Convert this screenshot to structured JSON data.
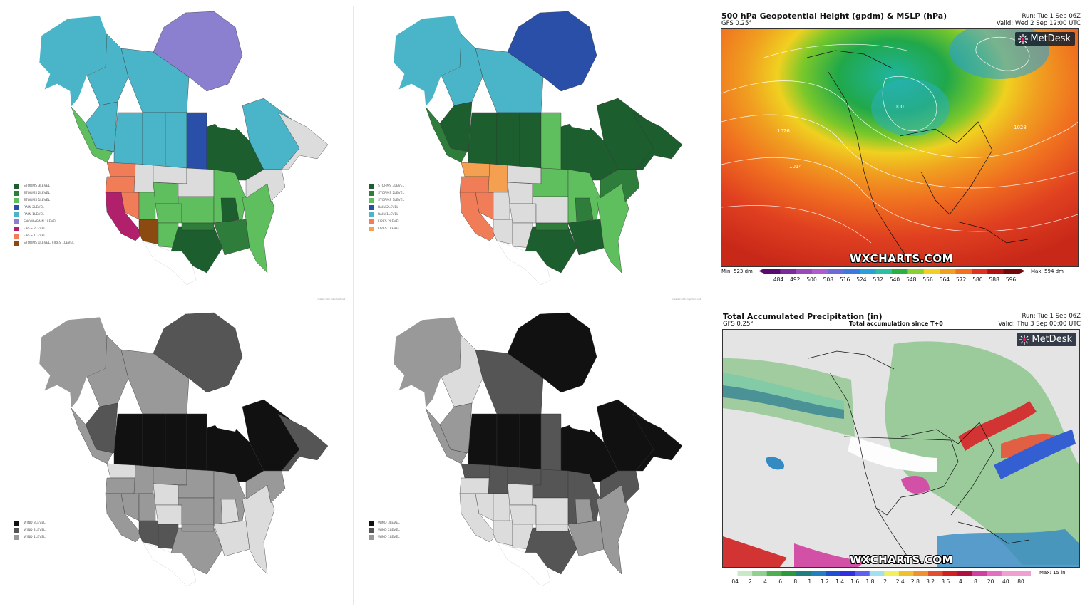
{
  "map1": {
    "legend": [
      {
        "label": "STORMS 3LEVEL",
        "color": "#1c5e2e"
      },
      {
        "label": "STORMS 2LEVEL",
        "color": "#2e7d3a"
      },
      {
        "label": "STORMS 1LEVEL",
        "color": "#5fbf5f"
      },
      {
        "label": "RAIN 2LEVEL",
        "color": "#2a4fa8"
      },
      {
        "label": "RAIN 1LEVEL",
        "color": "#4ab5c8"
      },
      {
        "label": "SNOW+RAIN 1LEVEL",
        "color": "#8b7fd0"
      },
      {
        "label": "FIRES 2LEVEL",
        "color": "#b0206b"
      },
      {
        "label": "FIRES 1LEVEL",
        "color": "#f07c58"
      },
      {
        "label": "STORMS 1LEVEL, FIRES 1LEVEL",
        "color": "#8a4a10"
      }
    ],
    "caption": "created with mapchart.net"
  },
  "map2": {
    "legend": [
      {
        "label": "STORMS 3LEVEL",
        "color": "#1c5e2e"
      },
      {
        "label": "STORMS 2LEVEL",
        "color": "#2e7d3a"
      },
      {
        "label": "STORMS 1LEVEL",
        "color": "#5fbf5f"
      },
      {
        "label": "RAIN 2LEVEL",
        "color": "#2a4fa8"
      },
      {
        "label": "RAIN 1LEVEL",
        "color": "#4ab5c8"
      },
      {
        "label": "FIRES 2LEVEL",
        "color": "#f07c58"
      },
      {
        "label": "FIRES 1LEVEL",
        "color": "#f5a050"
      }
    ],
    "caption": "created with mapchart.net"
  },
  "map3": {
    "legend": [
      {
        "label": "WIND 3LEVEL",
        "color": "#111111"
      },
      {
        "label": "WIND 2LEVEL",
        "color": "#555555"
      },
      {
        "label": "WIND 1LEVEL",
        "color": "#999999"
      }
    ]
  },
  "map4": {
    "legend": [
      {
        "label": "WIND 3LEVEL",
        "color": "#111111"
      },
      {
        "label": "WIND 2LEVEL",
        "color": "#555555"
      },
      {
        "label": "WIND 1LEVEL",
        "color": "#999999"
      }
    ]
  },
  "wx1": {
    "title": "500 hPa Geopotential Height (gpdm) & MSLP (hPa)",
    "model": "GFS 0.25°",
    "run": "Run: Tue 1 Sep 06Z",
    "valid": "Valid: Wed 2 Sep 12:00 UTC",
    "brand": "WXCHARTS.COM",
    "logo": "MetDesk",
    "min": "Min: 523 dm",
    "max": "Max: 594 dm",
    "ticks": [
      "484",
      "492",
      "500",
      "508",
      "516",
      "524",
      "532",
      "540",
      "548",
      "556",
      "564",
      "572",
      "580",
      "588",
      "596"
    ],
    "scale_colors": [
      "#5a0a6e",
      "#7a2a9a",
      "#9a4ab8",
      "#b05ad0",
      "#6a6ad8",
      "#3a7ae0",
      "#2aa0d8",
      "#2ac0a0",
      "#2ab040",
      "#8ad030",
      "#f0d020",
      "#f0a020",
      "#f07020",
      "#e03020",
      "#b01010",
      "#700a0a"
    ]
  },
  "wx2": {
    "title": "Total Accumulated Precipitation (in)",
    "model": "GFS 0.25°",
    "subtitle": "Total accumulation since T+0",
    "run": "Run: Tue 1 Sep 06Z",
    "valid": "Valid: Thu 3 Sep 00:00 UTC",
    "brand": "WXCHARTS.COM",
    "logo": "MetDesk",
    "max": "Max: 15 in",
    "ticks": [
      ".04",
      ".2",
      ".4",
      ".6",
      ".8",
      "1",
      "1.2",
      "1.4",
      "1.6",
      "1.8",
      "2",
      "2.4",
      "2.8",
      "3.2",
      "3.6",
      "4",
      "8",
      "20",
      "40",
      "80"
    ],
    "scale_colors": [
      "#ffffff",
      "#c8e8c8",
      "#90d090",
      "#50b050",
      "#2a9a3a",
      "#208080",
      "#2080c0",
      "#2050d0",
      "#3030e0",
      "#6060f0",
      "#a0e0f0",
      "#f0f060",
      "#f0c030",
      "#f09030",
      "#e05030",
      "#d02020",
      "#b01040",
      "#d040a0",
      "#e070c0",
      "#f0a0d0"
    ]
  }
}
